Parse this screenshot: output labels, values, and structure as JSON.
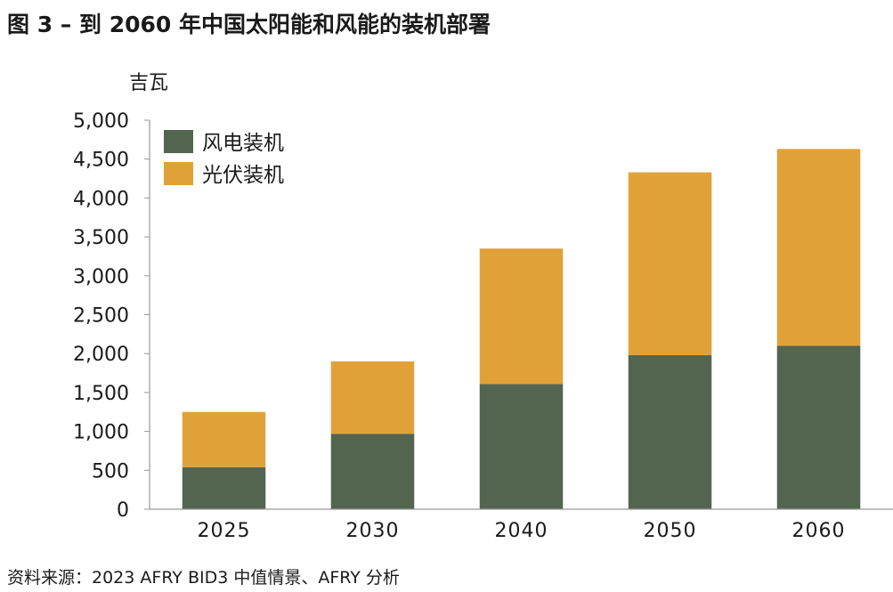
{
  "title": "图 3 – 到 2060 年中国太阳能和风能的装机部署",
  "source": "资料来源：2023 AFRY BID3 中值情景、AFRY 分析",
  "chart_data": {
    "type": "bar",
    "stacked": true,
    "categories": [
      "2025",
      "2030",
      "2040",
      "2050",
      "2060"
    ],
    "series": [
      {
        "name": "风电装机",
        "color": "#53654f",
        "values": [
          540,
          970,
          1610,
          1980,
          2100
        ]
      },
      {
        "name": "光伏装机",
        "color": "#e0a238",
        "values": [
          710,
          930,
          1740,
          2350,
          2530
        ]
      }
    ],
    "ylabel": "吉瓦",
    "ylim": [
      0,
      5000
    ],
    "yticks": [
      0,
      500,
      1000,
      1500,
      2000,
      2500,
      3000,
      3500,
      4000,
      4500,
      5000
    ],
    "ytick_labels": [
      "0",
      "500",
      "1,000",
      "1,500",
      "2,000",
      "2,500",
      "3,000",
      "3,500",
      "4,000",
      "4,500",
      "5,000"
    ],
    "grid": false,
    "legend_position": "top-left"
  }
}
